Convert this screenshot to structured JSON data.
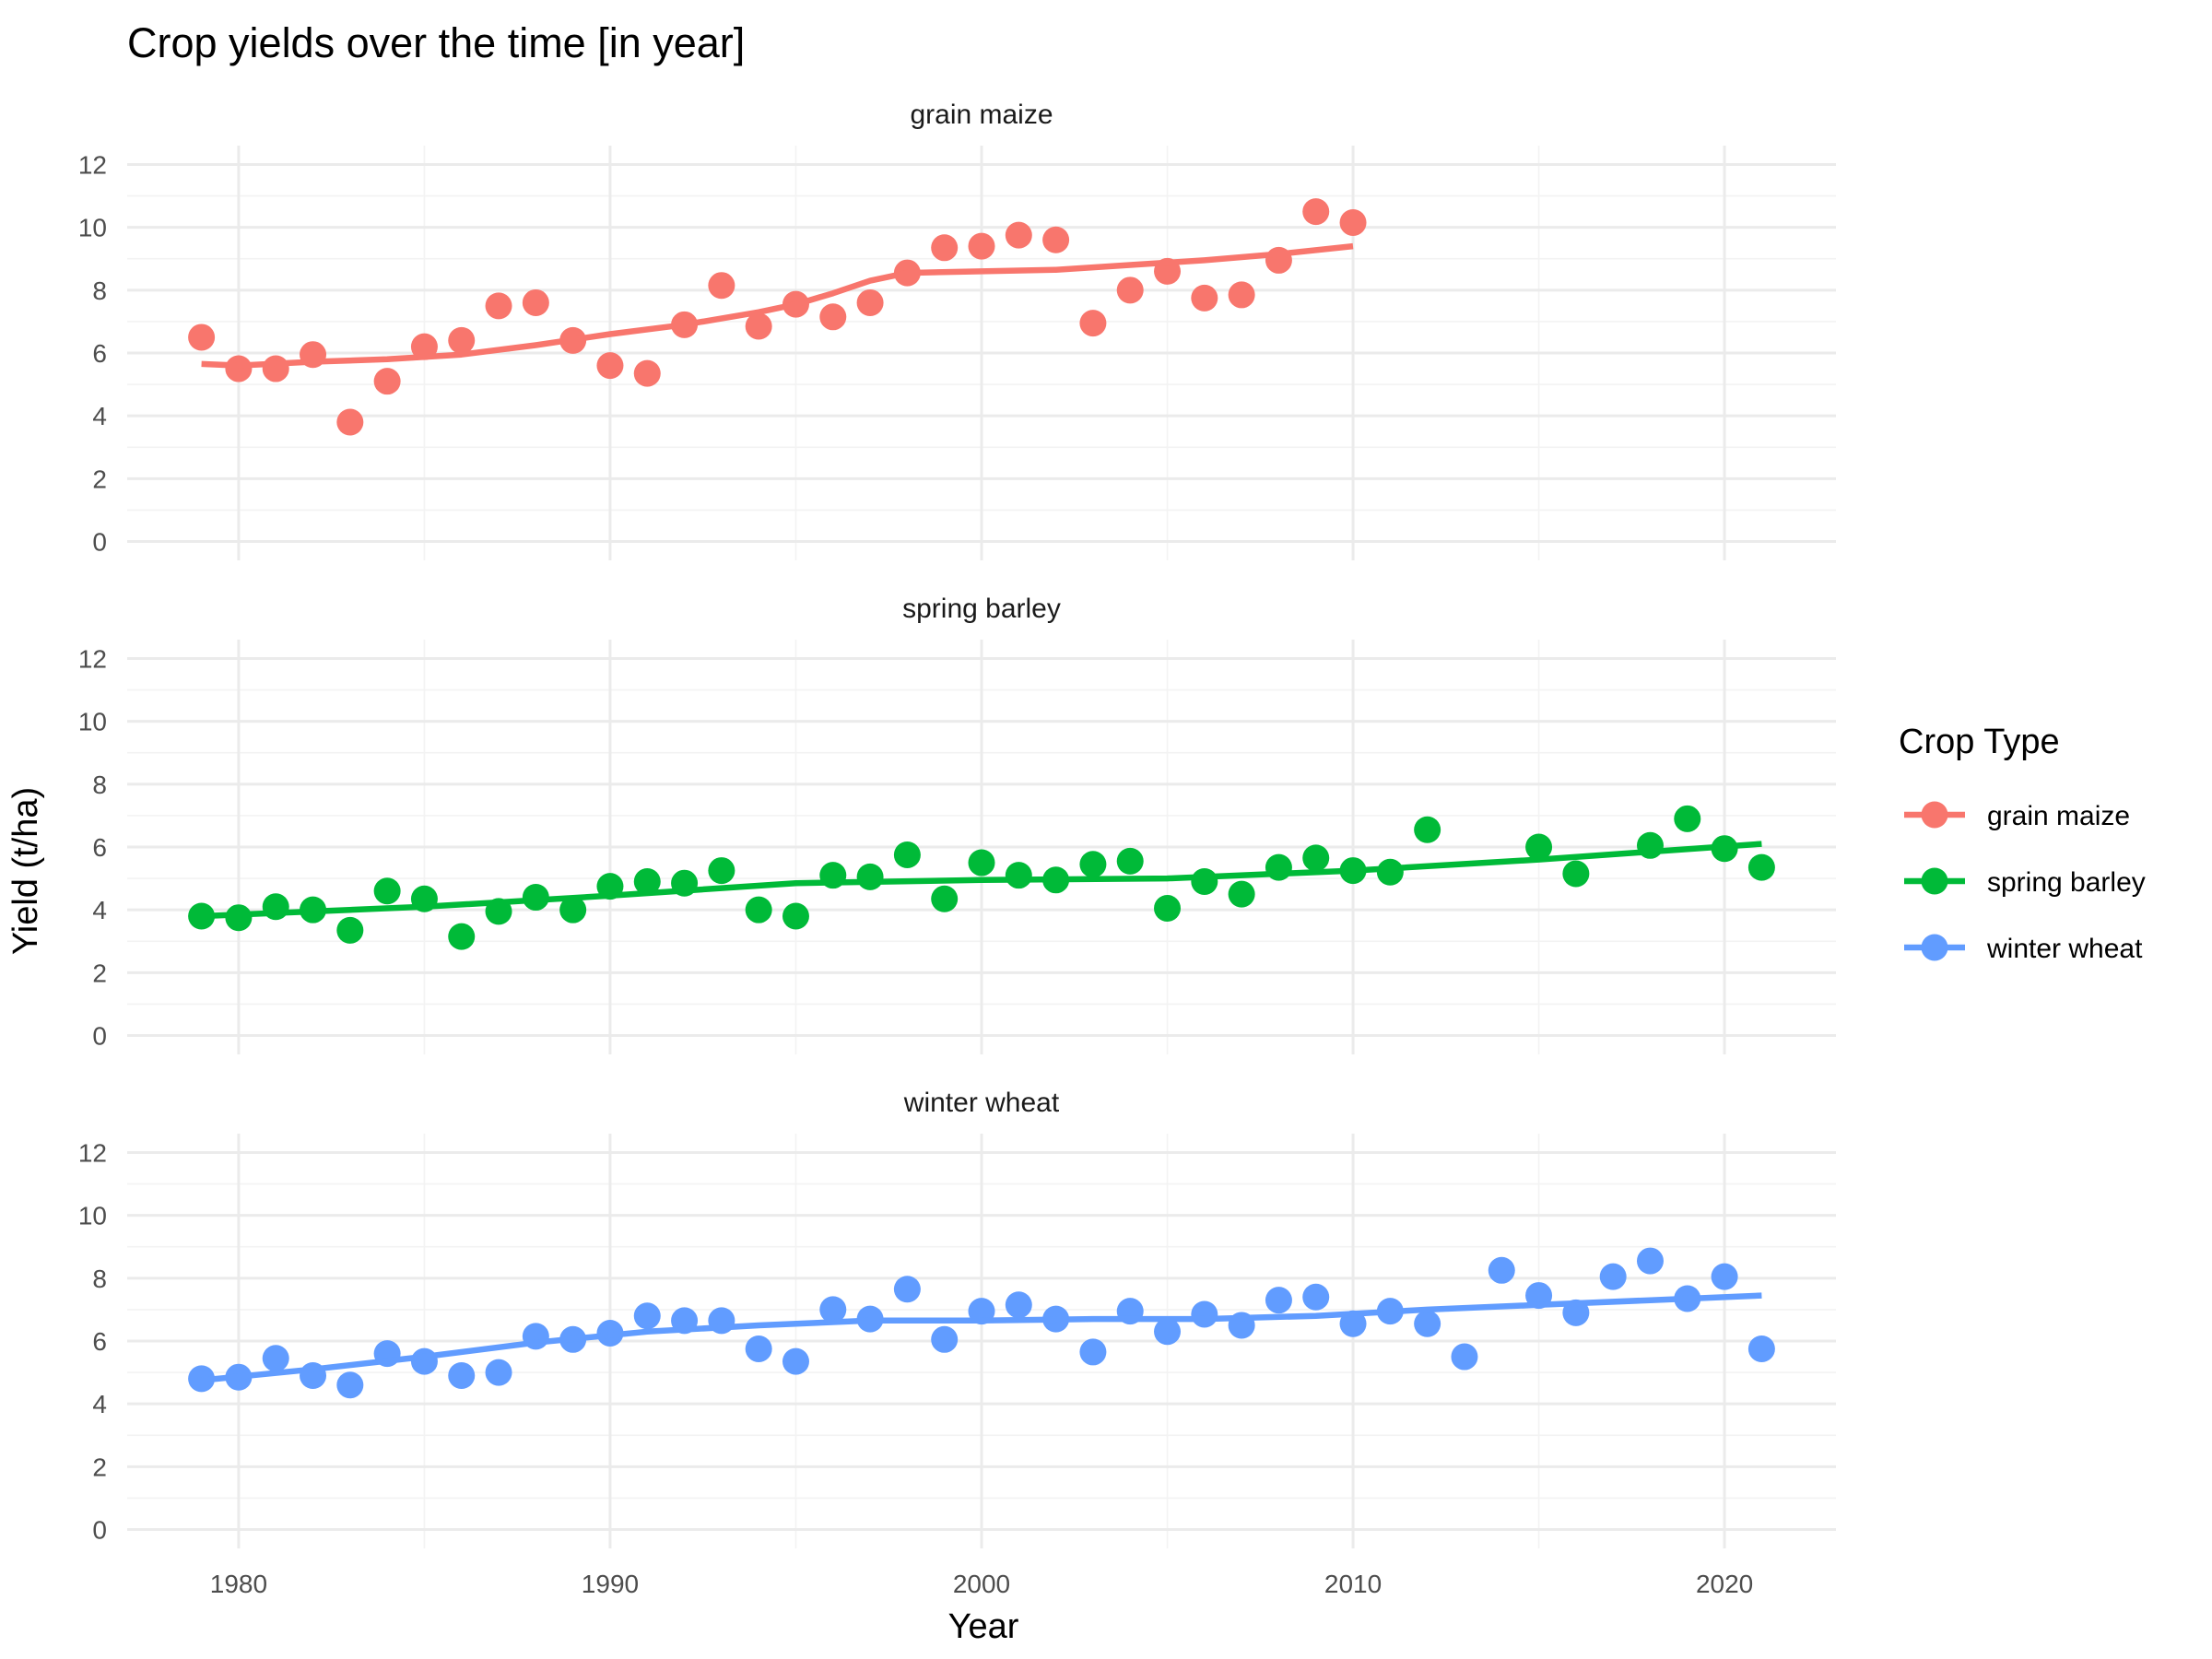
{
  "chart_data": {
    "type": "scatter",
    "title": "Crop yields over the time [in year]",
    "xlabel": "Year",
    "ylabel": "Yield (t/ha)",
    "xlim": [
      1977,
      2023
    ],
    "ylim": [
      0,
      12
    ],
    "x_ticks": [
      1980,
      1990,
      2000,
      2010,
      2020
    ],
    "y_ticks": [
      0,
      2,
      4,
      6,
      8,
      10,
      12
    ],
    "grid": true,
    "legend": {
      "title": "Crop Type",
      "position": "right",
      "entries": [
        "grain maize",
        "spring barley",
        "winter wheat"
      ]
    },
    "panels": [
      {
        "name": "grain maize",
        "color": "#F8766D",
        "points": [
          [
            1979,
            6.5
          ],
          [
            1980,
            5.5
          ],
          [
            1981,
            5.5
          ],
          [
            1982,
            5.95
          ],
          [
            1983,
            3.8
          ],
          [
            1984,
            5.1
          ],
          [
            1985,
            6.2
          ],
          [
            1986,
            6.4
          ],
          [
            1987,
            7.5
          ],
          [
            1988,
            7.6
          ],
          [
            1989,
            6.4
          ],
          [
            1990,
            5.6
          ],
          [
            1991,
            5.35
          ],
          [
            1992,
            6.9
          ],
          [
            1993,
            8.15
          ],
          [
            1994,
            6.85
          ],
          [
            1995,
            7.55
          ],
          [
            1996,
            7.15
          ],
          [
            1997,
            7.6
          ],
          [
            1998,
            8.55
          ],
          [
            1999,
            9.35
          ],
          [
            2000,
            9.4
          ],
          [
            2001,
            9.75
          ],
          [
            2002,
            9.6
          ],
          [
            2003,
            6.95
          ],
          [
            2004,
            8.0
          ],
          [
            2005,
            8.6
          ],
          [
            2006,
            7.75
          ],
          [
            2007,
            7.85
          ],
          [
            2008,
            8.95
          ],
          [
            2009,
            10.5
          ],
          [
            2010,
            10.15
          ]
        ],
        "trend": [
          [
            1979,
            5.65
          ],
          [
            1980,
            5.6
          ],
          [
            1982,
            5.72
          ],
          [
            1984,
            5.8
          ],
          [
            1986,
            5.95
          ],
          [
            1988,
            6.25
          ],
          [
            1990,
            6.6
          ],
          [
            1992,
            6.9
          ],
          [
            1994,
            7.3
          ],
          [
            1995,
            7.55
          ],
          [
            1996,
            7.9
          ],
          [
            1997,
            8.3
          ],
          [
            1998,
            8.55
          ],
          [
            2000,
            8.6
          ],
          [
            2002,
            8.65
          ],
          [
            2004,
            8.8
          ],
          [
            2006,
            8.95
          ],
          [
            2008,
            9.15
          ],
          [
            2010,
            9.4
          ]
        ]
      },
      {
        "name": "spring barley",
        "color": "#00BA38",
        "points": [
          [
            1979,
            3.8
          ],
          [
            1980,
            3.75
          ],
          [
            1981,
            4.1
          ],
          [
            1982,
            4.0
          ],
          [
            1983,
            3.35
          ],
          [
            1984,
            4.6
          ],
          [
            1985,
            4.35
          ],
          [
            1986,
            3.15
          ],
          [
            1987,
            3.95
          ],
          [
            1988,
            4.4
          ],
          [
            1989,
            4.0
          ],
          [
            1990,
            4.75
          ],
          [
            1991,
            4.9
          ],
          [
            1992,
            4.85
          ],
          [
            1993,
            5.25
          ],
          [
            1994,
            4.0
          ],
          [
            1995,
            3.8
          ],
          [
            1996,
            5.1
          ],
          [
            1997,
            5.05
          ],
          [
            1998,
            5.75
          ],
          [
            1999,
            4.35
          ],
          [
            2000,
            5.5
          ],
          [
            2001,
            5.1
          ],
          [
            2002,
            4.95
          ],
          [
            2003,
            5.45
          ],
          [
            2004,
            5.55
          ],
          [
            2005,
            4.05
          ],
          [
            2006,
            4.9
          ],
          [
            2007,
            4.5
          ],
          [
            2008,
            5.35
          ],
          [
            2009,
            5.65
          ],
          [
            2010,
            5.25
          ],
          [
            2011,
            5.2
          ],
          [
            2012,
            6.55
          ],
          [
            2015,
            6.0
          ],
          [
            2016,
            5.15
          ],
          [
            2018,
            6.05
          ],
          [
            2019,
            6.9
          ],
          [
            2020,
            5.95
          ],
          [
            2021,
            5.35
          ]
        ],
        "trend": [
          [
            1979,
            3.8
          ],
          [
            1985,
            4.1
          ],
          [
            1990,
            4.45
          ],
          [
            1995,
            4.85
          ],
          [
            2000,
            4.95
          ],
          [
            2005,
            5.0
          ],
          [
            2010,
            5.25
          ],
          [
            2015,
            5.6
          ],
          [
            2021,
            6.1
          ]
        ]
      },
      {
        "name": "winter wheat",
        "color": "#619CFF",
        "points": [
          [
            1979,
            4.8
          ],
          [
            1980,
            4.85
          ],
          [
            1981,
            5.45
          ],
          [
            1982,
            4.9
          ],
          [
            1983,
            4.6
          ],
          [
            1984,
            5.6
          ],
          [
            1985,
            5.35
          ],
          [
            1986,
            4.9
          ],
          [
            1987,
            5.0
          ],
          [
            1988,
            6.15
          ],
          [
            1989,
            6.05
          ],
          [
            1990,
            6.25
          ],
          [
            1991,
            6.8
          ],
          [
            1992,
            6.65
          ],
          [
            1993,
            6.65
          ],
          [
            1994,
            5.75
          ],
          [
            1995,
            5.35
          ],
          [
            1996,
            7.0
          ],
          [
            1997,
            6.7
          ],
          [
            1998,
            7.65
          ],
          [
            1999,
            6.05
          ],
          [
            2000,
            6.95
          ],
          [
            2001,
            7.15
          ],
          [
            2002,
            6.7
          ],
          [
            2003,
            5.65
          ],
          [
            2004,
            6.95
          ],
          [
            2005,
            6.3
          ],
          [
            2006,
            6.85
          ],
          [
            2007,
            6.5
          ],
          [
            2008,
            7.3
          ],
          [
            2009,
            7.4
          ],
          [
            2010,
            6.55
          ],
          [
            2011,
            6.95
          ],
          [
            2012,
            6.55
          ],
          [
            2013,
            5.5
          ],
          [
            2014,
            8.25
          ],
          [
            2015,
            7.45
          ],
          [
            2016,
            6.9
          ],
          [
            2017,
            8.05
          ],
          [
            2018,
            8.55
          ],
          [
            2019,
            7.35
          ],
          [
            2020,
            8.05
          ],
          [
            2021,
            5.75
          ]
        ],
        "trend": [
          [
            1979,
            4.75
          ],
          [
            1982,
            5.1
          ],
          [
            1985,
            5.5
          ],
          [
            1988,
            5.95
          ],
          [
            1991,
            6.3
          ],
          [
            1994,
            6.5
          ],
          [
            1997,
            6.65
          ],
          [
            2000,
            6.65
          ],
          [
            2003,
            6.7
          ],
          [
            2006,
            6.7
          ],
          [
            2009,
            6.8
          ],
          [
            2012,
            7.0
          ],
          [
            2015,
            7.15
          ],
          [
            2018,
            7.3
          ],
          [
            2021,
            7.45
          ]
        ]
      }
    ]
  }
}
